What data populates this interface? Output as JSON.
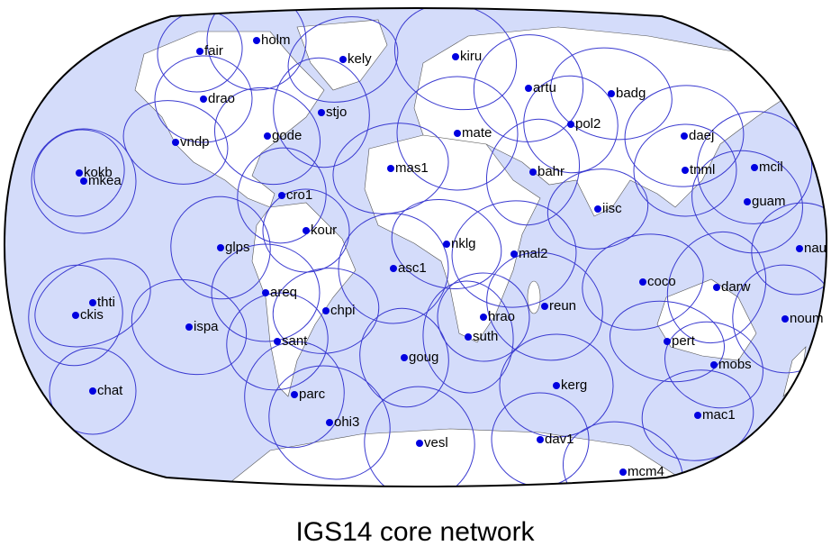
{
  "title": "IGS14 core network",
  "stations": [
    "fair",
    "holm",
    "kely",
    "kiru",
    "drao",
    "artu",
    "badg",
    "stjo",
    "gode",
    "mate",
    "pol2",
    "vndp",
    "daej",
    "kokb",
    "mkea",
    "mas1",
    "bahr",
    "tnml",
    "mcil",
    "cro1",
    "iisc",
    "guam",
    "kour",
    "glps",
    "nklg",
    "mal2",
    "nau",
    "asc1",
    "coco",
    "darw",
    "areq",
    "thti",
    "ckis",
    "chpi",
    "reun",
    "hrao",
    "noum",
    "ispa",
    "suth",
    "sant",
    "pert",
    "goug",
    "mobs",
    "kerg",
    "chat",
    "parc",
    "mac1",
    "ohi3",
    "dav1",
    "vesl",
    "mcm4"
  ]
}
